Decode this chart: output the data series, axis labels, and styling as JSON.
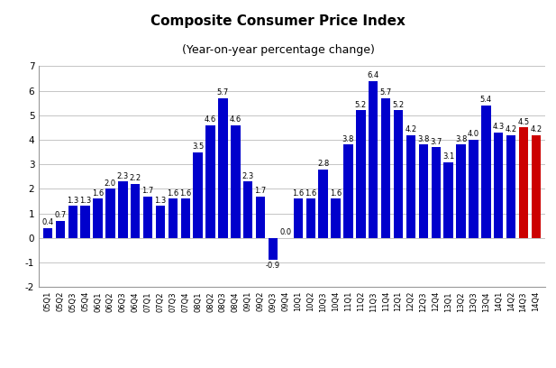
{
  "title": "Composite Consumer Price Index",
  "subtitle": "(Year-on-year percentage change)",
  "categories": [
    "05Q1",
    "05Q2",
    "05Q3",
    "05Q4",
    "06Q1",
    "06Q2",
    "06Q3",
    "06Q4",
    "07Q1",
    "07Q2",
    "07Q3",
    "07Q4",
    "08Q1",
    "08Q2",
    "08Q3",
    "08Q4",
    "09Q1",
    "09Q2",
    "09Q3",
    "09Q4",
    "10Q1",
    "10Q2",
    "10Q3",
    "10Q4",
    "11Q1",
    "11Q2",
    "11Q3",
    "11Q4",
    "12Q1",
    "12Q2",
    "12Q3",
    "12Q4",
    "13Q1",
    "13Q2",
    "13Q3",
    "13Q4",
    "14Q1",
    "14Q2",
    "14Q3",
    "14Q4"
  ],
  "values": [
    0.4,
    0.7,
    1.3,
    1.3,
    1.6,
    2.0,
    2.3,
    2.2,
    1.7,
    1.3,
    1.6,
    1.6,
    3.5,
    4.6,
    5.7,
    4.6,
    2.3,
    1.7,
    -0.9,
    0.0,
    1.6,
    1.6,
    2.8,
    1.6,
    3.8,
    5.2,
    6.4,
    5.7,
    5.2,
    4.2,
    3.8,
    3.7,
    3.1,
    3.8,
    4.0,
    5.4,
    4.3,
    4.2,
    4.5,
    4.2
  ],
  "colors": [
    "#0000CC",
    "#0000CC",
    "#0000CC",
    "#0000CC",
    "#0000CC",
    "#0000CC",
    "#0000CC",
    "#0000CC",
    "#0000CC",
    "#0000CC",
    "#0000CC",
    "#0000CC",
    "#0000CC",
    "#0000CC",
    "#0000CC",
    "#0000CC",
    "#0000CC",
    "#0000CC",
    "#0000CC",
    "#0000CC",
    "#0000CC",
    "#0000CC",
    "#0000CC",
    "#0000CC",
    "#0000CC",
    "#0000CC",
    "#0000CC",
    "#0000CC",
    "#0000CC",
    "#0000CC",
    "#0000CC",
    "#0000CC",
    "#0000CC",
    "#0000CC",
    "#0000CC",
    "#0000CC",
    "#0000CC",
    "#0000CC",
    "#CC0000",
    "#CC0000"
  ],
  "ylim": [
    -2,
    7
  ],
  "yticks": [
    -2,
    -1,
    0,
    1,
    2,
    3,
    4,
    5,
    6,
    7
  ],
  "background_color": "#FFFFFF",
  "grid_color": "#BBBBBB",
  "label_fontsize": 6.0,
  "title_fontsize": 11,
  "subtitle_fontsize": 9,
  "tick_fontsize": 7.5,
  "xtick_fontsize": 6.0
}
